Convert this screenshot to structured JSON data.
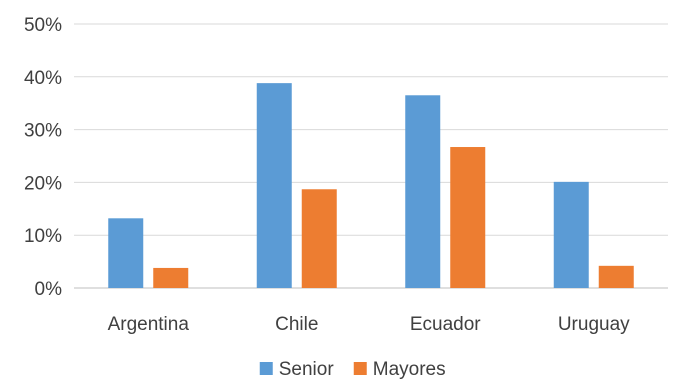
{
  "chart_data": {
    "type": "bar",
    "title": "",
    "xlabel": "",
    "ylabel": "",
    "categories": [
      "Argentina",
      "Chile",
      "Ecuador",
      "Uruguay"
    ],
    "series": [
      {
        "name": "Senior",
        "color": "#5b9bd5",
        "values": [
          13.2,
          38.8,
          36.5,
          20.1
        ]
      },
      {
        "name": "Mayores",
        "color": "#ed7d31",
        "values": [
          3.8,
          18.7,
          26.7,
          4.2
        ]
      }
    ],
    "ylim": [
      0,
      50
    ],
    "yticks": [
      "0%",
      "10%",
      "20%",
      "30%",
      "40%",
      "50%"
    ],
    "ytick_values": [
      0,
      10,
      20,
      30,
      40,
      50
    ],
    "grid": true,
    "legend_position": "bottom"
  }
}
